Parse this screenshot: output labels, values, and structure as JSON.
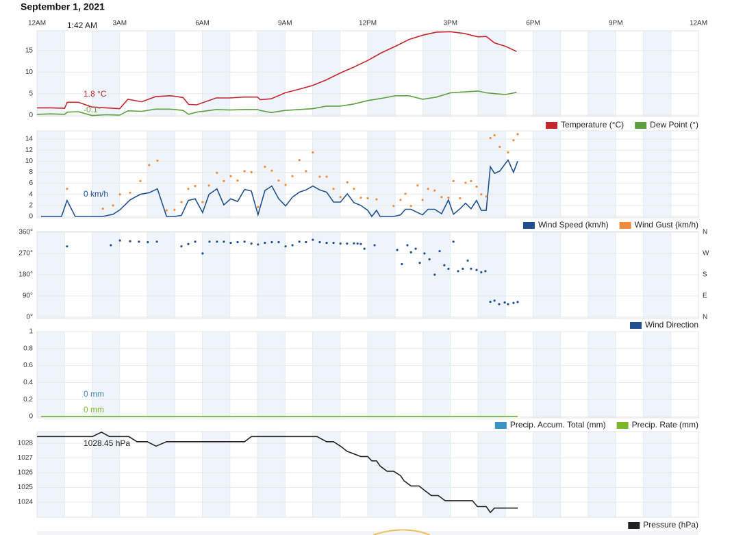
{
  "title": "September 1, 2021",
  "cursor_label": "1:42 AM",
  "time_axis": {
    "xlim": [
      0,
      24
    ],
    "xticks": [
      {
        "value": 0,
        "label": "12AM"
      },
      {
        "value": 3,
        "label": "3AM"
      },
      {
        "value": 6,
        "label": "6AM"
      },
      {
        "value": 9,
        "label": "9AM"
      },
      {
        "value": 12,
        "label": "12PM"
      },
      {
        "value": 15,
        "label": "3PM"
      },
      {
        "value": 18,
        "label": "6PM"
      },
      {
        "value": 21,
        "label": "9PM"
      },
      {
        "value": 24,
        "label": "12AM"
      }
    ]
  },
  "chart_data": [
    {
      "type": "line",
      "xlim": [
        0,
        24
      ],
      "ylim": [
        -0.3,
        19.6
      ],
      "yticks": [
        0,
        5,
        10,
        15
      ],
      "grid": true,
      "annotations": [
        "1.8 °C",
        "-0.1°"
      ],
      "x": [
        0,
        0.5,
        1,
        1.1,
        1.5,
        2,
        2.5,
        3,
        3.3,
        3.8,
        4.3,
        4.8,
        5,
        5.3,
        5.5,
        5.8,
        6.5,
        7,
        7.5,
        8,
        8.1,
        8.5,
        9,
        9.5,
        10,
        10.5,
        11,
        11.5,
        12,
        12.5,
        13,
        13.5,
        14,
        14.5,
        15,
        15.5,
        16,
        16.3,
        16.6,
        17,
        17.4
      ],
      "series": [
        {
          "name": "Temperature (°C)",
          "color": "#c4262e",
          "type": "line",
          "values": [
            1.7,
            1.7,
            1.6,
            3.0,
            3.0,
            1.9,
            1.7,
            1.5,
            3.7,
            3.1,
            4.3,
            4.5,
            4.4,
            4.1,
            2.5,
            2.4,
            4.0,
            4.0,
            4.2,
            4.2,
            3.6,
            3.8,
            5.2,
            6.0,
            6.9,
            8.2,
            9.8,
            11.2,
            12.7,
            14.5,
            16.0,
            17.6,
            18.6,
            19.3,
            19.4,
            19.0,
            18.2,
            18.3,
            16.8,
            16.0,
            14.8
          ]
        },
        {
          "name": "Dew Point (°)",
          "color": "#5b9f3f",
          "type": "line",
          "values": [
            0.2,
            0.3,
            0.2,
            0.7,
            0.8,
            -0.1,
            0.1,
            0.0,
            1.0,
            0.9,
            1.4,
            1.4,
            1.3,
            1.1,
            0.2,
            0.7,
            1.3,
            1.2,
            1.3,
            1.3,
            1.1,
            0.6,
            1.1,
            1.3,
            1.5,
            2.1,
            2.1,
            2.6,
            3.4,
            3.9,
            4.5,
            4.5,
            3.7,
            4.2,
            5.2,
            5.4,
            5.6,
            5.2,
            5.0,
            4.8,
            5.3
          ]
        }
      ]
    },
    {
      "type": "line",
      "xlim": [
        0,
        24
      ],
      "ylim": [
        -0.25,
        15.5
      ],
      "yticks": [
        0,
        2,
        4,
        6,
        8,
        10,
        12,
        14
      ],
      "grid": true,
      "annotations": [
        "0 km/h"
      ],
      "x": [
        0.15,
        0.89,
        1.09,
        1.39,
        2.39,
        2.76,
        3.01,
        3.38,
        3.75,
        4.07,
        4.37,
        4.7,
        4.99,
        5.24,
        5.49,
        5.74,
        6.01,
        6.24,
        6.53,
        6.78,
        7.03,
        7.28,
        7.53,
        7.78,
        8.02,
        8.27,
        8.52,
        8.77,
        9.02,
        9.27,
        9.52,
        9.76,
        10.01,
        10.26,
        10.51,
        10.76,
        11.01,
        11.26,
        11.5,
        11.75,
        12.0,
        12.15,
        12.32,
        12.45,
        12.94,
        13.19,
        13.37,
        13.57,
        13.81,
        13.99,
        14.19,
        14.43,
        14.68,
        14.93,
        15.11,
        15.35,
        15.55,
        15.75,
        15.95,
        16.12,
        16.3,
        16.45,
        16.6,
        16.79,
        17.09,
        17.29,
        17.44
      ],
      "series": [
        {
          "name": "Wind Speed (km/h)",
          "color": "#1f4f8f",
          "type": "line",
          "values": [
            0,
            0,
            2.9,
            0,
            0,
            0.4,
            1.2,
            3.0,
            4.0,
            4.3,
            5.0,
            0,
            0,
            0.2,
            2.9,
            3.2,
            0.7,
            4.0,
            5.0,
            2.1,
            3.2,
            2.7,
            4.9,
            4.6,
            0.3,
            4.7,
            5.5,
            3.2,
            1.9,
            3.5,
            4.4,
            4.8,
            5.5,
            4.8,
            4.4,
            2.6,
            2.6,
            4.1,
            2.5,
            2.0,
            1.1,
            0,
            1.1,
            0,
            0,
            0.3,
            1.3,
            1.3,
            0.7,
            0.3,
            1.3,
            1.3,
            0.5,
            3.0,
            0.4,
            1.4,
            2.4,
            1.4,
            2.9,
            1.1,
            1.1,
            9.0,
            7.8,
            8.2,
            10.2,
            8.0,
            10.0
          ]
        },
        {
          "name": "Wind Gust (km/h)",
          "color": "#f08a3e",
          "type": "scatter",
          "values": [
            null,
            null,
            5.0,
            null,
            1.4,
            2.0,
            4.0,
            4.3,
            6.4,
            9.3,
            10.1,
            1.1,
            1.2,
            2.6,
            5.0,
            5.5,
            2.6,
            5.6,
            7.9,
            6.4,
            7.3,
            6.5,
            8.2,
            8.0,
            1.7,
            9.0,
            8.3,
            6.5,
            5.7,
            7.3,
            10.2,
            8.2,
            11.6,
            7.2,
            7.2,
            5.0,
            3.5,
            6.2,
            5.0,
            3.4,
            3.3,
            null,
            3.1,
            null,
            1.9,
            3.0,
            4.1,
            1.9,
            5.6,
            3.0,
            5.0,
            4.7,
            3.5,
            3.4,
            6.4,
            3.3,
            6.1,
            6.4,
            5.4,
            4.0,
            3.6,
            14.2,
            14.7,
            12.6,
            11.6,
            13.8,
            14.9
          ]
        }
      ]
    },
    {
      "type": "scatter",
      "xlim": [
        0,
        24
      ],
      "ylim": [
        -6,
        363
      ],
      "grid": true,
      "yticks": [
        {
          "value": 0,
          "label": "0°"
        },
        {
          "value": 90,
          "label": "90°"
        },
        {
          "value": 180,
          "label": "180°"
        },
        {
          "value": 270,
          "label": "270°"
        },
        {
          "value": 360,
          "label": "360°"
        }
      ],
      "y2lim": [
        -6,
        363
      ],
      "y2ticks": [
        {
          "value": 0,
          "label": "N"
        },
        {
          "value": 90,
          "label": "E"
        },
        {
          "value": 180,
          "label": "S"
        },
        {
          "value": 270,
          "label": "W"
        },
        {
          "value": 360,
          "label": "N"
        }
      ],
      "x": [
        1.09,
        2.68,
        3.01,
        3.38,
        3.7,
        4.02,
        4.35,
        5.24,
        5.49,
        5.74,
        6.01,
        6.26,
        6.53,
        6.78,
        7.03,
        7.28,
        7.53,
        7.78,
        8.02,
        8.27,
        8.52,
        8.77,
        9.02,
        9.27,
        9.52,
        9.76,
        10.01,
        10.26,
        10.51,
        10.76,
        11.01,
        11.25,
        11.5,
        11.63,
        11.75,
        11.88,
        12.25,
        13.07,
        13.24,
        13.44,
        13.57,
        13.74,
        13.89,
        14.06,
        14.24,
        14.43,
        14.61,
        14.78,
        14.93,
        15.11,
        15.28,
        15.45,
        15.63,
        15.75,
        15.95,
        16.12,
        16.27,
        16.45,
        16.6,
        16.77,
        16.97,
        17.09,
        17.29,
        17.44
      ],
      "series": [
        {
          "name": "Wind Direction",
          "color": "#1f4f8f",
          "type": "scatter",
          "values": [
            300,
            305,
            325,
            322,
            320,
            318,
            320,
            300,
            310,
            320,
            270,
            320,
            320,
            320,
            315,
            318,
            320,
            312,
            308,
            315,
            318,
            318,
            300,
            305,
            320,
            318,
            328,
            318,
            315,
            315,
            312,
            312,
            313,
            312,
            310,
            290,
            305,
            285,
            225,
            305,
            275,
            290,
            230,
            270,
            245,
            180,
            280,
            220,
            205,
            320,
            195,
            205,
            240,
            205,
            200,
            190,
            195,
            65,
            70,
            55,
            62,
            55,
            60,
            64
          ]
        }
      ]
    },
    {
      "type": "line",
      "xlim": [
        0,
        24
      ],
      "ylim": [
        -0.016,
        1
      ],
      "yticks": [
        0,
        0.2,
        0.4,
        0.6,
        0.8,
        1
      ],
      "grid": true,
      "annotations": [
        "0 mm",
        "0 mm"
      ],
      "x": [
        0.15,
        17.44
      ],
      "series": [
        {
          "name": "Precip. Accum. Total (mm)",
          "color": "#3b94c6",
          "type": "line",
          "values": [
            0,
            0
          ]
        },
        {
          "name": "Precip. Rate (mm)",
          "color": "#7ab829",
          "type": "line",
          "values": [
            0,
            0
          ]
        }
      ]
    },
    {
      "type": "line",
      "xlim": [
        0,
        24
      ],
      "ylim": [
        1022.98,
        1028.79
      ],
      "yticks": [
        1024,
        1025,
        1026,
        1027,
        1028
      ],
      "grid": true,
      "annotations": [
        "1028.45 hPa"
      ],
      "x": [
        0,
        1.64,
        2.01,
        2.34,
        2.63,
        3.33,
        3.63,
        4.0,
        4.32,
        4.7,
        7.53,
        7.78,
        10.16,
        10.51,
        10.76,
        11.01,
        11.25,
        11.75,
        12.0,
        12.15,
        12.32,
        12.45,
        12.7,
        12.94,
        13.19,
        13.32,
        13.57,
        13.86,
        14.06,
        14.31,
        14.56,
        14.81,
        15.8,
        15.98,
        16.3,
        16.45,
        16.6,
        17.44
      ],
      "series": [
        {
          "name": "Pressure (hPa)",
          "color": "#222222",
          "type": "line",
          "values": [
            1028.45,
            1028.45,
            1028.45,
            1028.75,
            1028.45,
            1028.45,
            1028.1,
            1028.1,
            1027.8,
            1028.1,
            1028.1,
            1028.45,
            1028.45,
            1028.1,
            1028.1,
            1027.8,
            1027.45,
            1027.1,
            1027.1,
            1026.8,
            1026.8,
            1026.45,
            1026.1,
            1026.1,
            1025.8,
            1025.45,
            1025.1,
            1025.1,
            1024.8,
            1024.45,
            1024.45,
            1024.1,
            1024.1,
            1023.7,
            1023.7,
            1023.3,
            1023.6,
            1023.6
          ]
        }
      ]
    }
  ]
}
